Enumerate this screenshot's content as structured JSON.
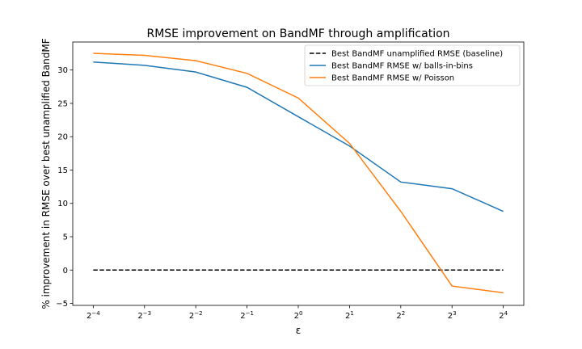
{
  "chart_data": {
    "type": "line",
    "title": "RMSE improvement on BandMF through amplification",
    "xlabel": "ε",
    "ylabel": "% improvement in RMSE over best unamplified BandMF",
    "x_scale": "log2",
    "x_exponents": [
      -4,
      -3,
      -2,
      -1,
      0,
      1,
      2,
      3,
      4
    ],
    "x_tick_base": "2",
    "x_tick_exponents": [
      "−4",
      "−3",
      "−2",
      "−1",
      "0",
      "1",
      "2",
      "3",
      "4"
    ],
    "y_ticks": [
      "−5",
      "0",
      "5",
      "10",
      "15",
      "20",
      "25",
      "30"
    ],
    "y_tick_values": [
      -5,
      0,
      5,
      10,
      15,
      20,
      25,
      30
    ],
    "ylim": [
      -5.3,
      34.2
    ],
    "grid": false,
    "legend_position": "top-right",
    "series": [
      {
        "name": "Best BandMF unamplified RMSE (baseline)",
        "color": "#000000",
        "style": "dashed",
        "values": [
          0,
          0,
          0,
          0,
          0,
          0,
          0,
          0,
          0
        ]
      },
      {
        "name": "Best BandMF RMSE w/ balls-in-bins",
        "color": "#1f77b4",
        "style": "solid",
        "values": [
          31.2,
          30.7,
          29.7,
          27.4,
          23.0,
          18.6,
          13.2,
          12.2,
          8.8
        ]
      },
      {
        "name": "Best BandMF RMSE w/ Poisson",
        "color": "#ff7f0e",
        "style": "solid",
        "values": [
          32.5,
          32.2,
          31.4,
          29.5,
          25.8,
          19.0,
          8.8,
          -2.4,
          -3.4
        ]
      }
    ]
  }
}
